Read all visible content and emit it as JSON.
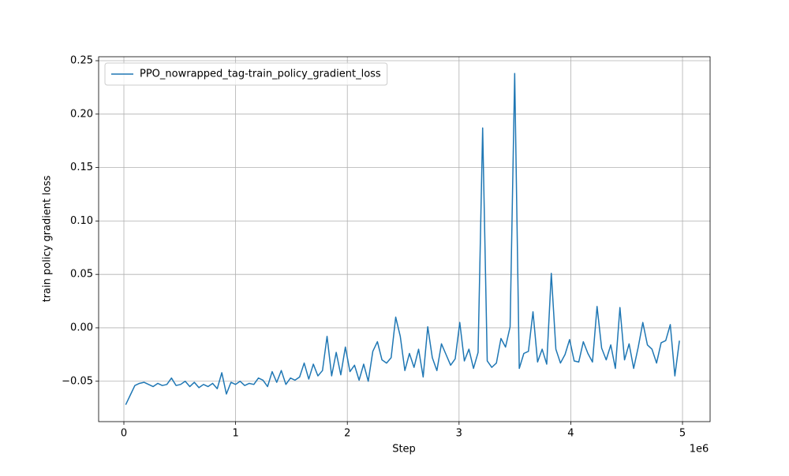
{
  "chart_data": {
    "type": "line",
    "xlabel": "Step",
    "ylabel": "train policy gradient loss",
    "x_offset_label": "1e6",
    "xlim": [
      -226000,
      5247000
    ],
    "ylim": [
      -0.0878,
      0.2537
    ],
    "xticks": [
      {
        "value": 0,
        "label": "0"
      },
      {
        "value": 1000000,
        "label": "1"
      },
      {
        "value": 2000000,
        "label": "2"
      },
      {
        "value": 3000000,
        "label": "3"
      },
      {
        "value": 4000000,
        "label": "4"
      },
      {
        "value": 5000000,
        "label": "5"
      }
    ],
    "yticks": [
      {
        "value": -0.05,
        "label": "−0.05"
      },
      {
        "value": 0,
        "label": "0.00"
      },
      {
        "value": 0.05,
        "label": "0.05"
      },
      {
        "value": 0.1,
        "label": "0.10"
      },
      0.15,
      {
        "value": 0.2,
        "label": "0.20"
      },
      0.25
    ],
    "grid": true,
    "legend": "upper left",
    "x": [
      16384,
      57344,
      98304,
      139264,
      180224,
      221184,
      262144,
      303104,
      344064,
      385024,
      425984,
      466944,
      507904,
      548864,
      589824,
      630784,
      671744,
      712704,
      753664,
      794624,
      835584,
      876544,
      917504,
      958464,
      999424,
      1040384,
      1081344,
      1122304,
      1163264,
      1204224,
      1245184,
      1286144,
      1327104,
      1368064,
      1409024,
      1449984,
      1490944,
      1531904,
      1572864,
      1613824,
      1654784,
      1695744,
      1736704,
      1777664,
      1818624,
      1859584,
      1900544,
      1941504,
      1982464,
      2023424,
      2064384,
      2105344,
      2146304,
      2187264,
      2228224,
      2269184,
      2310144,
      2351104,
      2392064,
      2433024,
      2473984,
      2514944,
      2555904,
      2596864,
      2637824,
      2678784,
      2719744,
      2760704,
      2801664,
      2842624,
      2883584,
      2924544,
      2965504,
      3006464,
      3047424,
      3088384,
      3129344,
      3170304,
      3211264,
      3252224,
      3293184,
      3334144,
      3375104,
      3416064,
      3457024,
      3497984,
      3538944,
      3579904,
      3620864,
      3661824,
      3702784,
      3743744,
      3784704,
      3825664,
      3866624,
      3907584,
      3948544,
      3989504,
      4030464,
      4071424,
      4112384,
      4153344,
      4194304,
      4235264,
      4276224,
      4317184,
      4358144,
      4399104,
      4440064,
      4481024,
      4521984,
      4562944,
      4603904,
      4644864,
      4685824,
      4726784,
      4767744,
      4808704,
      4849664,
      4890624,
      4931584,
      4972544
    ],
    "series": [
      {
        "name": "PPO_nowrapped_tag-train_policy_gradient_loss",
        "color": "#1f77b4",
        "values": [
          -0.072,
          -0.063,
          -0.054,
          -0.052,
          -0.051,
          -0.053,
          -0.055,
          -0.052,
          -0.054,
          -0.053,
          -0.047,
          -0.054,
          -0.053,
          -0.05,
          -0.055,
          -0.051,
          -0.056,
          -0.053,
          -0.055,
          -0.052,
          -0.057,
          -0.042,
          -0.062,
          -0.051,
          -0.053,
          -0.05,
          -0.054,
          -0.052,
          -0.053,
          -0.047,
          -0.049,
          -0.055,
          -0.041,
          -0.051,
          -0.04,
          -0.053,
          -0.047,
          -0.049,
          -0.046,
          -0.033,
          -0.048,
          -0.034,
          -0.045,
          -0.04,
          -0.008,
          -0.045,
          -0.023,
          -0.044,
          -0.018,
          -0.041,
          -0.035,
          -0.049,
          -0.034,
          -0.05,
          -0.022,
          -0.013,
          -0.03,
          -0.033,
          -0.028,
          0.01,
          -0.008,
          -0.04,
          -0.024,
          -0.037,
          -0.02,
          -0.046,
          0.001,
          -0.028,
          -0.04,
          -0.015,
          -0.025,
          -0.035,
          -0.029,
          0.005,
          -0.031,
          -0.02,
          -0.038,
          -0.023,
          0.187,
          -0.031,
          -0.037,
          -0.033,
          -0.01,
          -0.018,
          0.001,
          0.238,
          -0.038,
          -0.024,
          -0.022,
          0.015,
          -0.032,
          -0.02,
          -0.034,
          0.051,
          -0.02,
          -0.033,
          -0.025,
          -0.011,
          -0.031,
          -0.032,
          -0.013,
          -0.024,
          -0.032,
          0.02,
          -0.019,
          -0.03,
          -0.016,
          -0.038,
          0.019,
          -0.03,
          -0.015,
          -0.038,
          -0.018,
          0.005,
          -0.016,
          -0.02,
          -0.033,
          -0.014,
          -0.012,
          0.003,
          -0.045,
          -0.012
        ]
      }
    ]
  }
}
